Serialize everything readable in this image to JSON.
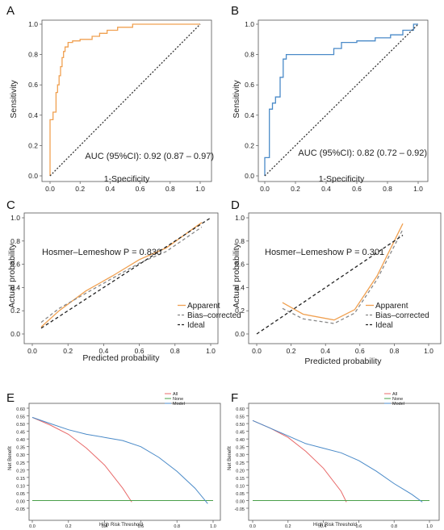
{
  "chart_data": [
    {
      "panel": "A",
      "type": "line",
      "xlabel": "1-Specificity",
      "ylabel": "Sensitivity",
      "xlim": [
        0,
        1
      ],
      "ylim": [
        0,
        1
      ],
      "xticks": [
        "0.0",
        "0.2",
        "0.4",
        "0.6",
        "0.8",
        "1.0"
      ],
      "yticks": [
        "0.0",
        "0.2",
        "0.4",
        "0.6",
        "0.8",
        "1.0"
      ],
      "annotation": "AUC (95%CI): 0.92 (0.87 – 0.97)",
      "color": "#f0a050",
      "series": [
        {
          "x": [
            0,
            0,
            0.02,
            0.02,
            0.04,
            0.04,
            0.05,
            0.05,
            0.06,
            0.06,
            0.07,
            0.07,
            0.08,
            0.08,
            0.09,
            0.09,
            0.1,
            0.1,
            0.12,
            0.12,
            0.15,
            0.15,
            0.2,
            0.2,
            0.28,
            0.28,
            0.33,
            0.33,
            0.38,
            0.38,
            0.45,
            0.45,
            0.55,
            0.55,
            1.0
          ],
          "y": [
            0,
            0.37,
            0.37,
            0.42,
            0.42,
            0.55,
            0.55,
            0.6,
            0.6,
            0.66,
            0.66,
            0.72,
            0.72,
            0.78,
            0.78,
            0.82,
            0.82,
            0.85,
            0.85,
            0.88,
            0.88,
            0.89,
            0.89,
            0.9,
            0.9,
            0.92,
            0.92,
            0.94,
            0.94,
            0.96,
            0.96,
            0.98,
            0.98,
            1.0,
            1.0
          ]
        },
        {
          "x": [
            0,
            1
          ],
          "y": [
            0,
            1
          ],
          "dash": true,
          "color": "#333333"
        }
      ]
    },
    {
      "panel": "B",
      "type": "line",
      "xlabel": "1-Specificity",
      "ylabel": "Sensitivity",
      "xlim": [
        0,
        1
      ],
      "ylim": [
        0,
        1
      ],
      "xticks": [
        "0.0",
        "0.2",
        "0.4",
        "0.6",
        "0.8",
        "1.0"
      ],
      "yticks": [
        "0.0",
        "0.2",
        "0.4",
        "0.6",
        "0.8",
        "1.0"
      ],
      "annotation": "AUC (95%CI): 0.82 (0.72 – 0.92)",
      "color": "#4a8ac8",
      "series": [
        {
          "x": [
            0,
            0,
            0.03,
            0.03,
            0.05,
            0.05,
            0.07,
            0.07,
            0.1,
            0.1,
            0.12,
            0.12,
            0.14,
            0.14,
            0.16,
            0.16,
            0.45,
            0.45,
            0.5,
            0.5,
            0.6,
            0.6,
            0.72,
            0.72,
            0.82,
            0.82,
            0.9,
            0.9,
            0.97,
            0.97,
            1.0
          ],
          "y": [
            0,
            0.12,
            0.12,
            0.44,
            0.44,
            0.48,
            0.48,
            0.52,
            0.52,
            0.65,
            0.65,
            0.77,
            0.77,
            0.8,
            0.8,
            0.8,
            0.8,
            0.84,
            0.84,
            0.88,
            0.88,
            0.89,
            0.89,
            0.91,
            0.91,
            0.93,
            0.93,
            0.96,
            0.96,
            1.0,
            1.0
          ]
        },
        {
          "x": [
            0,
            1
          ],
          "y": [
            0,
            1
          ],
          "dash": true,
          "color": "#333333"
        }
      ]
    },
    {
      "panel": "C",
      "type": "line",
      "xlabel": "Predicted probability",
      "ylabel": "Actual probability",
      "xlim": [
        0,
        1
      ],
      "ylim": [
        0,
        1
      ],
      "xticks": [
        "0.0",
        "0.2",
        "0.4",
        "0.6",
        "0.8",
        "1.0"
      ],
      "yticks": [
        "0.0",
        "0.2",
        "0.4",
        "0.6",
        "0.8",
        "1.0"
      ],
      "annotation": "Hosmer–Lemeshow  P = 0.830",
      "legend": [
        "Apparent",
        "Bias–corrected",
        "Ideal"
      ],
      "series": [
        {
          "name": "Apparent",
          "color": "#f0a050",
          "x": [
            0.05,
            0.15,
            0.3,
            0.45,
            0.6,
            0.75,
            0.95
          ],
          "y": [
            0.06,
            0.2,
            0.37,
            0.5,
            0.64,
            0.74,
            0.96
          ]
        },
        {
          "name": "Bias–corrected",
          "color": "#888888",
          "dash": true,
          "x": [
            0.05,
            0.15,
            0.3,
            0.45,
            0.6,
            0.75,
            0.95
          ],
          "y": [
            0.1,
            0.22,
            0.35,
            0.48,
            0.61,
            0.71,
            0.92
          ]
        },
        {
          "name": "Ideal",
          "color": "#222222",
          "dash": true,
          "x": [
            0.05,
            1.0
          ],
          "y": [
            0.05,
            1.0
          ]
        }
      ]
    },
    {
      "panel": "D",
      "type": "line",
      "xlabel": "Predicted probability",
      "ylabel": "Actual probability",
      "xlim": [
        0,
        1
      ],
      "ylim": [
        0,
        1
      ],
      "xticks": [
        "0.0",
        "0.2",
        "0.4",
        "0.6",
        "0.8",
        "1.0"
      ],
      "yticks": [
        "0.0",
        "0.2",
        "0.4",
        "0.6",
        "0.8",
        "1.0"
      ],
      "annotation": "Hosmer–Lemeshow  P = 0.301",
      "legend": [
        "Apparent",
        "Bias–corrected",
        "Ideal"
      ],
      "series": [
        {
          "name": "Apparent",
          "color": "#f0a050",
          "x": [
            0.15,
            0.27,
            0.45,
            0.57,
            0.7,
            0.85
          ],
          "y": [
            0.27,
            0.17,
            0.12,
            0.21,
            0.5,
            0.95
          ]
        },
        {
          "name": "Bias–corrected",
          "color": "#888888",
          "dash": true,
          "x": [
            0.15,
            0.27,
            0.45,
            0.57,
            0.7,
            0.85
          ],
          "y": [
            0.22,
            0.13,
            0.09,
            0.18,
            0.47,
            0.9
          ]
        },
        {
          "name": "Ideal",
          "color": "#222222",
          "dash": true,
          "x": [
            0.0,
            0.85
          ],
          "y": [
            0.0,
            0.85
          ]
        }
      ]
    },
    {
      "panel": "E",
      "type": "line",
      "xlabel": "High Risk Threshold",
      "ylabel": "Net Benefit",
      "xlim": [
        0,
        1
      ],
      "ylim": [
        -0.05,
        0.6
      ],
      "xticks": [
        "0.0",
        "0.2",
        "0.4",
        "0.6",
        "0.8",
        "1.0"
      ],
      "yticks": [
        "-0.05",
        "0.00",
        "0.05",
        "0.10",
        "0.15",
        "0.20",
        "0.25",
        "0.30",
        "0.35",
        "0.40",
        "0.45",
        "0.50",
        "0.55",
        "0.60"
      ],
      "legend": [
        "All",
        "None",
        "Model"
      ],
      "series": [
        {
          "name": "All",
          "color": "#e86a6a",
          "x": [
            0,
            0.1,
            0.2,
            0.3,
            0.4,
            0.5,
            0.55
          ],
          "y": [
            0.54,
            0.49,
            0.43,
            0.34,
            0.23,
            0.08,
            -0.01
          ]
        },
        {
          "name": "None",
          "color": "#4aa04a",
          "x": [
            0,
            1
          ],
          "y": [
            0,
            0
          ]
        },
        {
          "name": "Model",
          "color": "#4a8ac8",
          "x": [
            0,
            0.1,
            0.2,
            0.3,
            0.4,
            0.5,
            0.6,
            0.7,
            0.8,
            0.9,
            0.97
          ],
          "y": [
            0.54,
            0.5,
            0.46,
            0.43,
            0.41,
            0.39,
            0.35,
            0.28,
            0.19,
            0.08,
            -0.02
          ]
        }
      ]
    },
    {
      "panel": "F",
      "type": "line",
      "xlabel": "High Risk Threshold",
      "ylabel": "Net Benefit",
      "xlim": [
        0,
        1
      ],
      "ylim": [
        -0.05,
        0.6
      ],
      "xticks": [
        "0.0",
        "0.2",
        "0.4",
        "0.6",
        "0.8",
        "1.0"
      ],
      "yticks": [
        "-0.05",
        "0.00",
        "0.05",
        "0.10",
        "0.15",
        "0.20",
        "0.25",
        "0.30",
        "0.35",
        "0.40",
        "0.45",
        "0.50",
        "0.55",
        "0.60"
      ],
      "legend": [
        "All",
        "None",
        "Model"
      ],
      "series": [
        {
          "name": "All",
          "color": "#e86a6a",
          "x": [
            0,
            0.1,
            0.2,
            0.3,
            0.4,
            0.5,
            0.53
          ],
          "y": [
            0.52,
            0.47,
            0.41,
            0.32,
            0.21,
            0.06,
            -0.01
          ]
        },
        {
          "name": "None",
          "color": "#4aa04a",
          "x": [
            0,
            1
          ],
          "y": [
            0,
            0
          ]
        },
        {
          "name": "Model",
          "color": "#4a8ac8",
          "x": [
            0,
            0.1,
            0.2,
            0.3,
            0.4,
            0.5,
            0.6,
            0.7,
            0.8,
            0.9,
            0.96
          ],
          "y": [
            0.52,
            0.47,
            0.42,
            0.37,
            0.34,
            0.31,
            0.26,
            0.19,
            0.11,
            0.04,
            -0.01
          ]
        }
      ]
    }
  ]
}
